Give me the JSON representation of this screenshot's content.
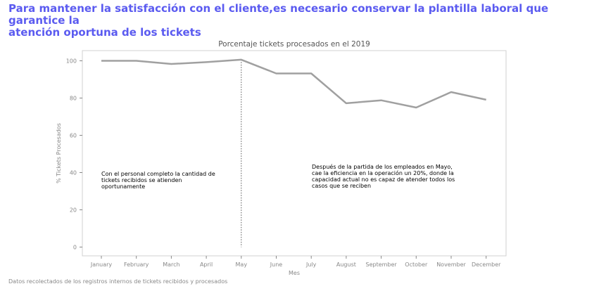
{
  "headline": {
    "line1": "Para mantener la satisfacción con el cliente,es necesario conservar la plantilla laboral que garantice la",
    "line2": "atención oportuna de los tickets"
  },
  "footnote": "Datos recolectados de los registros internos de tickets recibidos y procesados",
  "chart_data": {
    "type": "line",
    "title": "Porcentaje tickets procesados en el 2019",
    "xlabel": "Mes",
    "ylabel": "% Tickets Procesados",
    "categories": [
      "January",
      "February",
      "March",
      "April",
      "May",
      "June",
      "July",
      "August",
      "September",
      "October",
      "November",
      "December"
    ],
    "values": [
      100,
      100,
      98.3,
      99.3,
      100.6,
      93.2,
      93.2,
      77.2,
      78.8,
      74.9,
      83.2,
      79.1
    ],
    "ylim": [
      0,
      105
    ],
    "yticks": [
      0,
      20,
      40,
      60,
      80,
      100
    ],
    "grid": false,
    "line_color": "#a0a0a0",
    "marker_line": {
      "category": "May",
      "style": "dotted"
    },
    "annotations": [
      {
        "lines": [
          "Con el personal completo la cantidad de",
          "tickets recibidos se atienden",
          "oportunamente"
        ]
      },
      {
        "lines": [
          "Después de la partida de los empleados en Mayo,",
          "cae la eficiencia en la operación un 20%, donde la",
          "capacidad actual no es capaz de atender todos los",
          "casos que se reciben"
        ]
      }
    ]
  }
}
